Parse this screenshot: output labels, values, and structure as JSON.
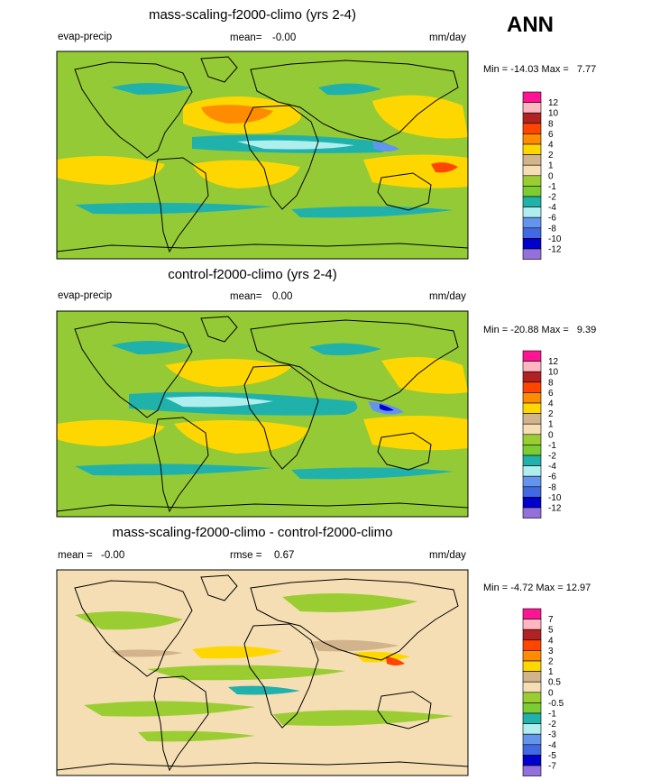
{
  "season": "ANN",
  "panels": [
    {
      "title": "mass-scaling-f2000-climo (yrs 2-4)",
      "left_label": "evap-precip",
      "mean_label": "mean=",
      "mean_value": "-0.00",
      "units": "mm/day",
      "min_label": "Min =",
      "min_value": "-14.03",
      "max_label": "Max =",
      "max_value": "7.77",
      "colorbar": {
        "levels": [
          "12",
          "10",
          "8",
          "6",
          "4",
          "2",
          "1",
          "0",
          "-1",
          "-2",
          "-4",
          "-6",
          "-8",
          "-10",
          "-12"
        ],
        "colors": [
          "#ff1493",
          "#ffb6c1",
          "#b22222",
          "#ff4500",
          "#ff8c00",
          "#ffd700",
          "#d2b48c",
          "#f5deb3",
          "#9acd32",
          "#7ccd32",
          "#20b2aa",
          "#afeeee",
          "#6495ed",
          "#4169e1",
          "#0000cd",
          "#9370db"
        ]
      }
    },
    {
      "title": "control-f2000-climo (yrs 2-4)",
      "left_label": "evap-precip",
      "mean_label": "mean=",
      "mean_value": "0.00",
      "units": "mm/day",
      "min_label": "Min =",
      "min_value": "-20.88",
      "max_label": "Max =",
      "max_value": "9.39",
      "colorbar": {
        "levels": [
          "12",
          "10",
          "8",
          "6",
          "4",
          "2",
          "1",
          "0",
          "-1",
          "-2",
          "-4",
          "-6",
          "-8",
          "-10",
          "-12"
        ],
        "colors": [
          "#ff1493",
          "#ffb6c1",
          "#b22222",
          "#ff4500",
          "#ff8c00",
          "#ffd700",
          "#d2b48c",
          "#f5deb3",
          "#9acd32",
          "#7ccd32",
          "#20b2aa",
          "#afeeee",
          "#6495ed",
          "#4169e1",
          "#0000cd",
          "#9370db"
        ]
      }
    },
    {
      "title": "mass-scaling-f2000-climo - control-f2000-climo",
      "left_label": "mean =",
      "left_value": "-0.00",
      "mean_label": "rmse =",
      "mean_value": "0.67",
      "units": "mm/day",
      "min_label": "Min =",
      "min_value": "-4.72",
      "max_label": "Max =",
      "max_value": "12.97",
      "colorbar": {
        "levels": [
          "7",
          "5",
          "4",
          "3",
          "2",
          "1",
          "0.5",
          "0",
          "-0.5",
          "-1",
          "-2",
          "-3",
          "-4",
          "-5",
          "-7"
        ],
        "colors": [
          "#ff1493",
          "#ffb6c1",
          "#b22222",
          "#ff4500",
          "#ff8c00",
          "#ffd700",
          "#d2b48c",
          "#f5deb3",
          "#9acd32",
          "#7ccd32",
          "#20b2aa",
          "#afeeee",
          "#6495ed",
          "#4169e1",
          "#0000cd",
          "#9370db"
        ]
      }
    }
  ],
  "chart_data": [
    {
      "type": "heatmap",
      "title": "mass-scaling-f2000-climo (yrs 2-4)",
      "variable": "evap-precip",
      "units": "mm/day",
      "mean": -0.0,
      "min": -14.03,
      "max": 7.77,
      "contour_levels": [
        -12,
        -10,
        -8,
        -6,
        -4,
        -2,
        -1,
        0,
        1,
        2,
        4,
        6,
        8,
        10,
        12
      ]
    },
    {
      "type": "heatmap",
      "title": "control-f2000-climo (yrs 2-4)",
      "variable": "evap-precip",
      "units": "mm/day",
      "mean": 0.0,
      "min": -20.88,
      "max": 9.39,
      "contour_levels": [
        -12,
        -10,
        -8,
        -6,
        -4,
        -2,
        -1,
        0,
        1,
        2,
        4,
        6,
        8,
        10,
        12
      ]
    },
    {
      "type": "heatmap",
      "title": "mass-scaling-f2000-climo - control-f2000-climo",
      "units": "mm/day",
      "mean": -0.0,
      "rmse": 0.67,
      "min": -4.72,
      "max": 12.97,
      "contour_levels": [
        -7,
        -5,
        -4,
        -3,
        -2,
        -1,
        -0.5,
        0,
        0.5,
        1,
        2,
        3,
        4,
        5,
        7
      ]
    }
  ]
}
